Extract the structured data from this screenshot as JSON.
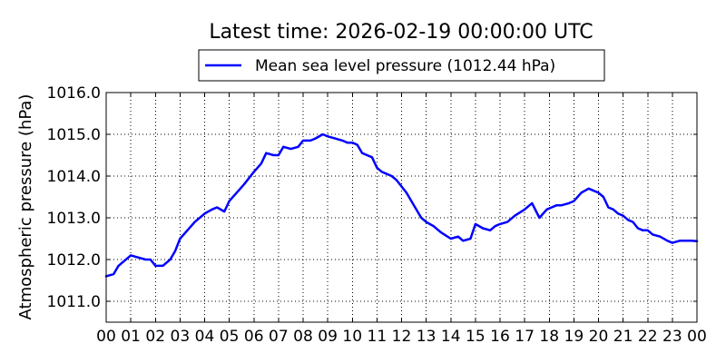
{
  "chart_data": {
    "type": "line",
    "title": "Latest time: 2026-02-19 00:00:00 UTC",
    "xlabel": "",
    "ylabel": "Atmospheric pressure (hPa)",
    "ylim": [
      1010.5,
      1016.0
    ],
    "xlim": [
      0,
      24
    ],
    "grid": true,
    "legend_position": "top-center",
    "x_tick_labels": [
      "00",
      "01",
      "02",
      "03",
      "04",
      "05",
      "06",
      "07",
      "08",
      "09",
      "10",
      "11",
      "12",
      "13",
      "14",
      "15",
      "16",
      "17",
      "18",
      "19",
      "20",
      "21",
      "22",
      "23",
      "00"
    ],
    "y_tick_labels": [
      "1011.0",
      "1012.0",
      "1013.0",
      "1014.0",
      "1015.0",
      "1016.0"
    ],
    "y_tick_values": [
      1011.0,
      1012.0,
      1013.0,
      1014.0,
      1015.0,
      1016.0
    ],
    "series": [
      {
        "name": "Mean sea level pressure (1012.44 hPa)",
        "color": "#0000ff",
        "x": [
          0.0,
          0.3,
          0.5,
          0.7,
          1.0,
          1.3,
          1.6,
          1.8,
          2.0,
          2.3,
          2.6,
          2.8,
          3.0,
          3.3,
          3.6,
          4.0,
          4.3,
          4.5,
          4.8,
          5.0,
          5.3,
          5.6,
          6.0,
          6.3,
          6.5,
          6.8,
          7.0,
          7.2,
          7.5,
          7.8,
          8.0,
          8.3,
          8.5,
          8.8,
          9.0,
          9.3,
          9.6,
          9.8,
          10.0,
          10.2,
          10.4,
          10.6,
          10.8,
          11.0,
          11.2,
          11.4,
          11.6,
          11.8,
          12.0,
          12.2,
          12.5,
          12.8,
          13.0,
          13.3,
          13.6,
          14.0,
          14.3,
          14.5,
          14.8,
          15.0,
          15.3,
          15.6,
          15.8,
          16.0,
          16.3,
          16.6,
          17.0,
          17.3,
          17.6,
          17.9,
          18.1,
          18.3,
          18.5,
          18.8,
          19.0,
          19.3,
          19.6,
          20.0,
          20.2,
          20.4,
          20.6,
          20.8,
          21.0,
          21.2,
          21.4,
          21.6,
          21.8,
          22.0,
          22.2,
          22.5,
          22.8,
          23.0,
          23.3,
          23.6,
          23.8,
          24.0
        ],
        "y": [
          1011.6,
          1011.65,
          1011.85,
          1011.95,
          1012.1,
          1012.05,
          1012.0,
          1012.0,
          1011.85,
          1011.85,
          1012.0,
          1012.2,
          1012.5,
          1012.7,
          1012.9,
          1013.1,
          1013.2,
          1013.25,
          1013.15,
          1013.4,
          1013.6,
          1013.8,
          1014.1,
          1014.3,
          1014.55,
          1014.5,
          1014.5,
          1014.7,
          1014.65,
          1014.7,
          1014.85,
          1014.85,
          1014.9,
          1015.0,
          1014.95,
          1014.9,
          1014.85,
          1014.8,
          1014.8,
          1014.75,
          1014.55,
          1014.5,
          1014.45,
          1014.2,
          1014.1,
          1014.05,
          1014.0,
          1013.9,
          1013.75,
          1013.6,
          1013.3,
          1013.0,
          1012.9,
          1012.8,
          1012.65,
          1012.5,
          1012.55,
          1012.45,
          1012.5,
          1012.85,
          1012.75,
          1012.7,
          1012.8,
          1012.85,
          1012.9,
          1013.05,
          1013.2,
          1013.35,
          1013.0,
          1013.2,
          1013.25,
          1013.3,
          1013.3,
          1013.35,
          1013.4,
          1013.6,
          1013.7,
          1013.6,
          1013.5,
          1013.25,
          1013.2,
          1013.1,
          1013.05,
          1012.95,
          1012.9,
          1012.75,
          1012.7,
          1012.7,
          1012.6,
          1012.55,
          1012.45,
          1012.4,
          1012.45,
          1012.45,
          1012.45,
          1012.44
        ]
      }
    ]
  }
}
